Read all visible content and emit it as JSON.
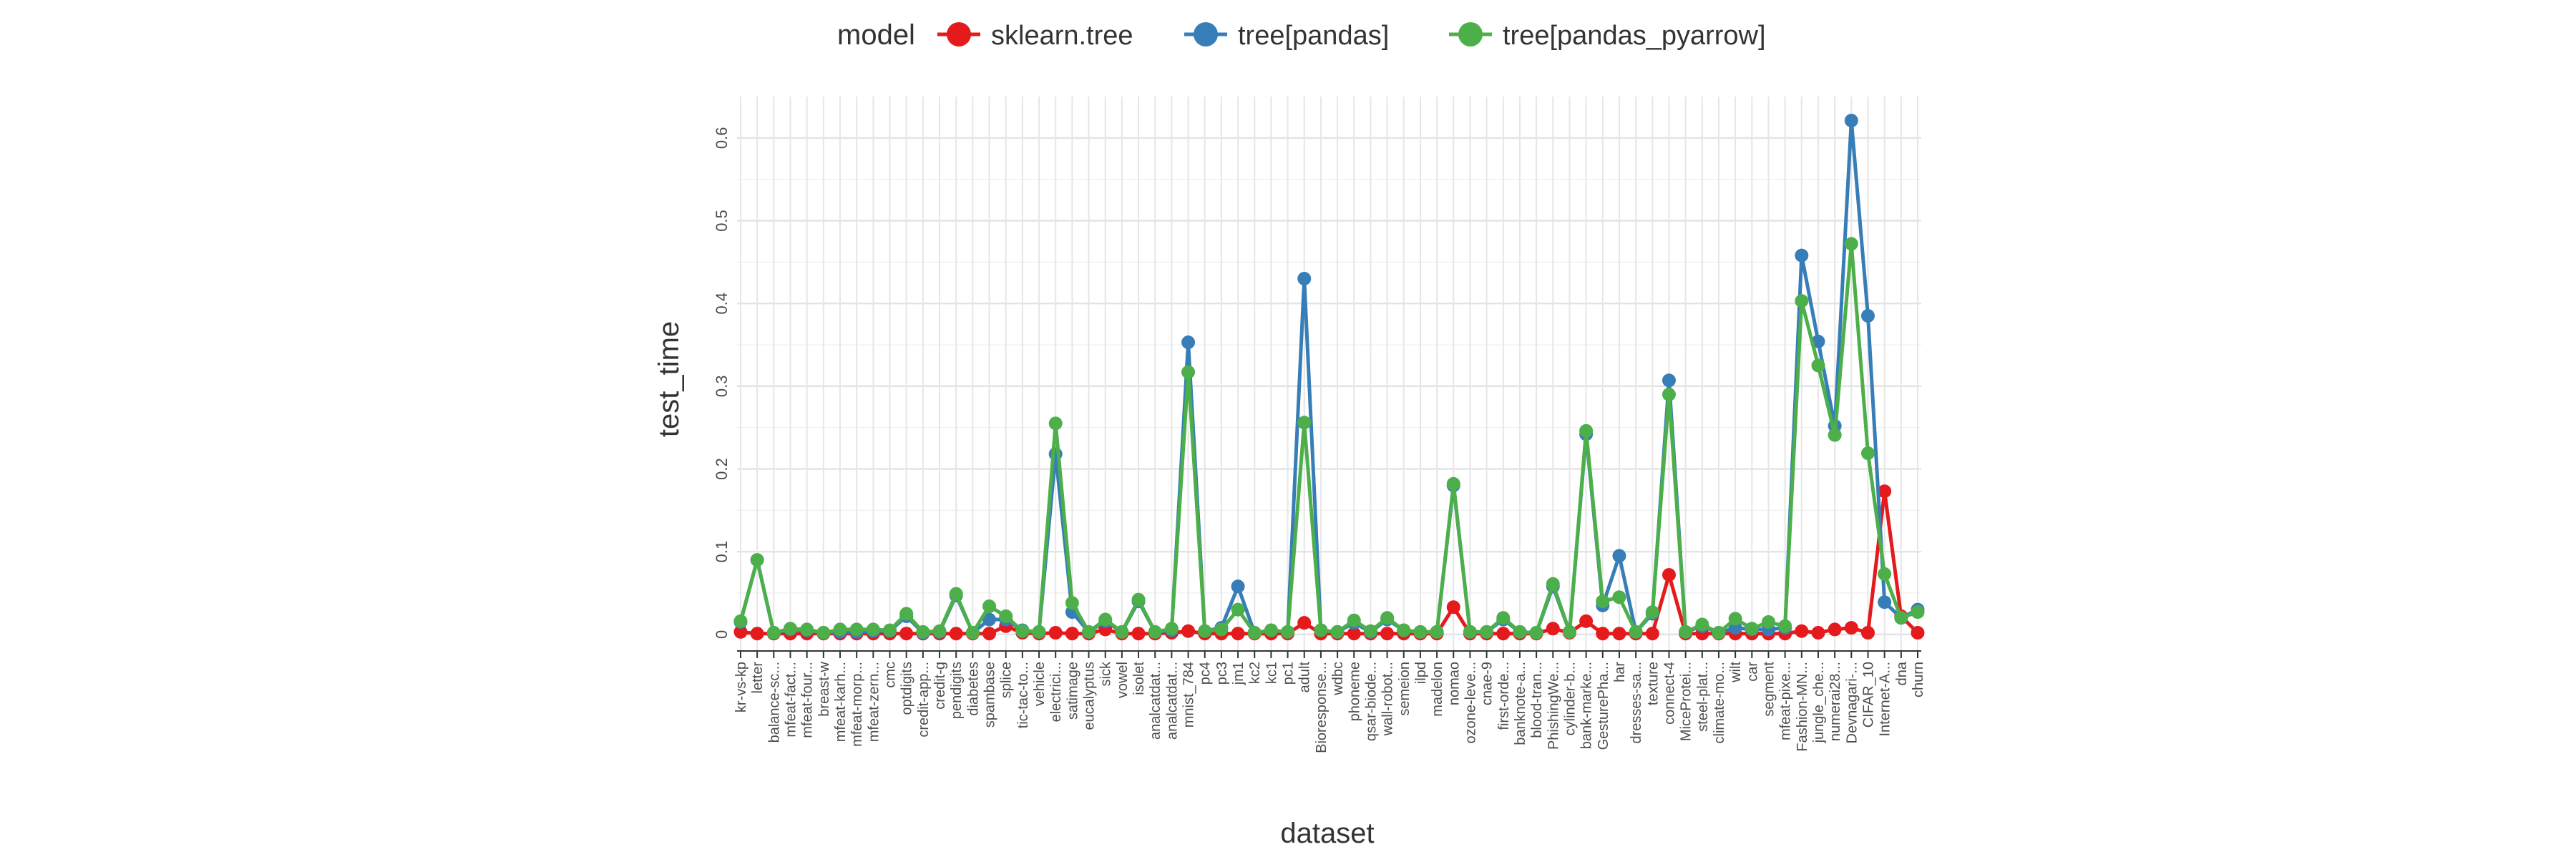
{
  "chart_data": {
    "type": "line",
    "xlabel": "dataset",
    "ylabel": "test_time",
    "legend_title": "model",
    "legend_position": "top",
    "grid": true,
    "ylim": [
      -0.02,
      0.65
    ],
    "yticks": [
      0,
      0.1,
      0.2,
      0.3,
      0.4,
      0.5,
      0.6
    ],
    "ytick_labels": [
      "0",
      "0.1",
      "0.2",
      "0.3",
      "0.4",
      "0.5",
      "0.6"
    ],
    "categories": [
      "kr-vs-kp",
      "letter",
      "balance-sc...",
      "mfeat-fact...",
      "mfeat-four...",
      "breast-w",
      "mfeat-karh...",
      "mfeat-morp...",
      "mfeat-zern...",
      "cmc",
      "optdigits",
      "credit-app...",
      "credit-g",
      "pendigits",
      "diabetes",
      "spambase",
      "splice",
      "tic-tac-to...",
      "vehicle",
      "electrici...",
      "satimage",
      "eucalyptus",
      "sick",
      "vowel",
      "isolet",
      "analcatdat...",
      "analcatdat...",
      "mnist_784",
      "pc4",
      "pc3",
      "jm1",
      "kc2",
      "kc1",
      "pc1",
      "adult",
      "Bioresponse...",
      "wdbc",
      "phoneme",
      "qsar-biode...",
      "wall-robot...",
      "semeion",
      "ilpd",
      "madelon",
      "nomao",
      "ozone-leve...",
      "cnae-9",
      "first-orde...",
      "banknote-a...",
      "blood-tran...",
      "PhishingWe...",
      "cylinder-b...",
      "bank-marke...",
      "GesturePha...",
      "har",
      "dresses-sa...",
      "texture",
      "connect-4",
      "MiceProtei...",
      "steel-plat...",
      "climate-mo...",
      "wilt",
      "car",
      "segment",
      "mfeat-pixe...",
      "Fashion-MN...",
      "jungle_che...",
      "numerai28...",
      "Devnagari-...",
      "CIFAR_10",
      "Internet-A...",
      "dna",
      "churn"
    ],
    "series": [
      {
        "name": "sklearn.tree",
        "color": "#e41a1c",
        "values": [
          0.003,
          0.001,
          0.001,
          0.001,
          0.001,
          0.001,
          0.001,
          0.001,
          0.001,
          0.001,
          0.001,
          0.001,
          0.001,
          0.001,
          0.001,
          0.001,
          0.01,
          0.002,
          0.001,
          0.002,
          0.001,
          0.001,
          0.006,
          0.001,
          0.001,
          0.001,
          0.002,
          0.004,
          0.001,
          0.001,
          0.001,
          0.001,
          0.001,
          0.001,
          0.014,
          0.001,
          0.001,
          0.001,
          0.001,
          0.001,
          0.001,
          0.001,
          0.001,
          0.033,
          0.001,
          0.001,
          0.001,
          0.001,
          0.001,
          0.007,
          0.002,
          0.016,
          0.001,
          0.001,
          0.001,
          0.001,
          0.072,
          0.001,
          0.001,
          0.001,
          0.001,
          0.001,
          0.001,
          0.001,
          0.004,
          0.002,
          0.006,
          0.008,
          0.002,
          0.173,
          0.022,
          0.002
        ]
      },
      {
        "name": "tree[pandas]",
        "color": "#377eb8",
        "values": [
          0.015,
          0.09,
          0.002,
          0.006,
          0.005,
          0.002,
          0.003,
          0.003,
          0.004,
          0.004,
          0.022,
          0.002,
          0.003,
          0.047,
          0.002,
          0.018,
          0.018,
          0.005,
          0.003,
          0.218,
          0.027,
          0.003,
          0.016,
          0.003,
          0.04,
          0.003,
          0.005,
          0.353,
          0.004,
          0.008,
          0.058,
          0.002,
          0.005,
          0.003,
          0.43,
          0.005,
          0.003,
          0.014,
          0.003,
          0.018,
          0.005,
          0.003,
          0.003,
          0.18,
          0.003,
          0.003,
          0.018,
          0.003,
          0.002,
          0.058,
          0.003,
          0.242,
          0.035,
          0.095,
          0.003,
          0.025,
          0.307,
          0.003,
          0.01,
          0.002,
          0.008,
          0.006,
          0.006,
          0.008,
          0.458,
          0.354,
          0.252,
          0.621,
          0.385,
          0.039,
          0.02,
          0.03
        ]
      },
      {
        "name": "tree[pandas_pyarrow]",
        "color": "#4daf4a",
        "values": [
          0.016,
          0.09,
          0.002,
          0.007,
          0.006,
          0.002,
          0.006,
          0.006,
          0.006,
          0.005,
          0.025,
          0.003,
          0.004,
          0.049,
          0.002,
          0.034,
          0.022,
          0.004,
          0.003,
          0.255,
          0.038,
          0.003,
          0.018,
          0.003,
          0.042,
          0.003,
          0.007,
          0.317,
          0.004,
          0.006,
          0.03,
          0.002,
          0.005,
          0.003,
          0.256,
          0.005,
          0.003,
          0.017,
          0.004,
          0.02,
          0.005,
          0.003,
          0.003,
          0.182,
          0.003,
          0.003,
          0.02,
          0.003,
          0.002,
          0.061,
          0.003,
          0.246,
          0.04,
          0.045,
          0.003,
          0.027,
          0.29,
          0.003,
          0.012,
          0.002,
          0.019,
          0.007,
          0.015,
          0.01,
          0.403,
          0.325,
          0.241,
          0.472,
          0.219,
          0.073,
          0.02,
          0.027
        ]
      }
    ]
  }
}
